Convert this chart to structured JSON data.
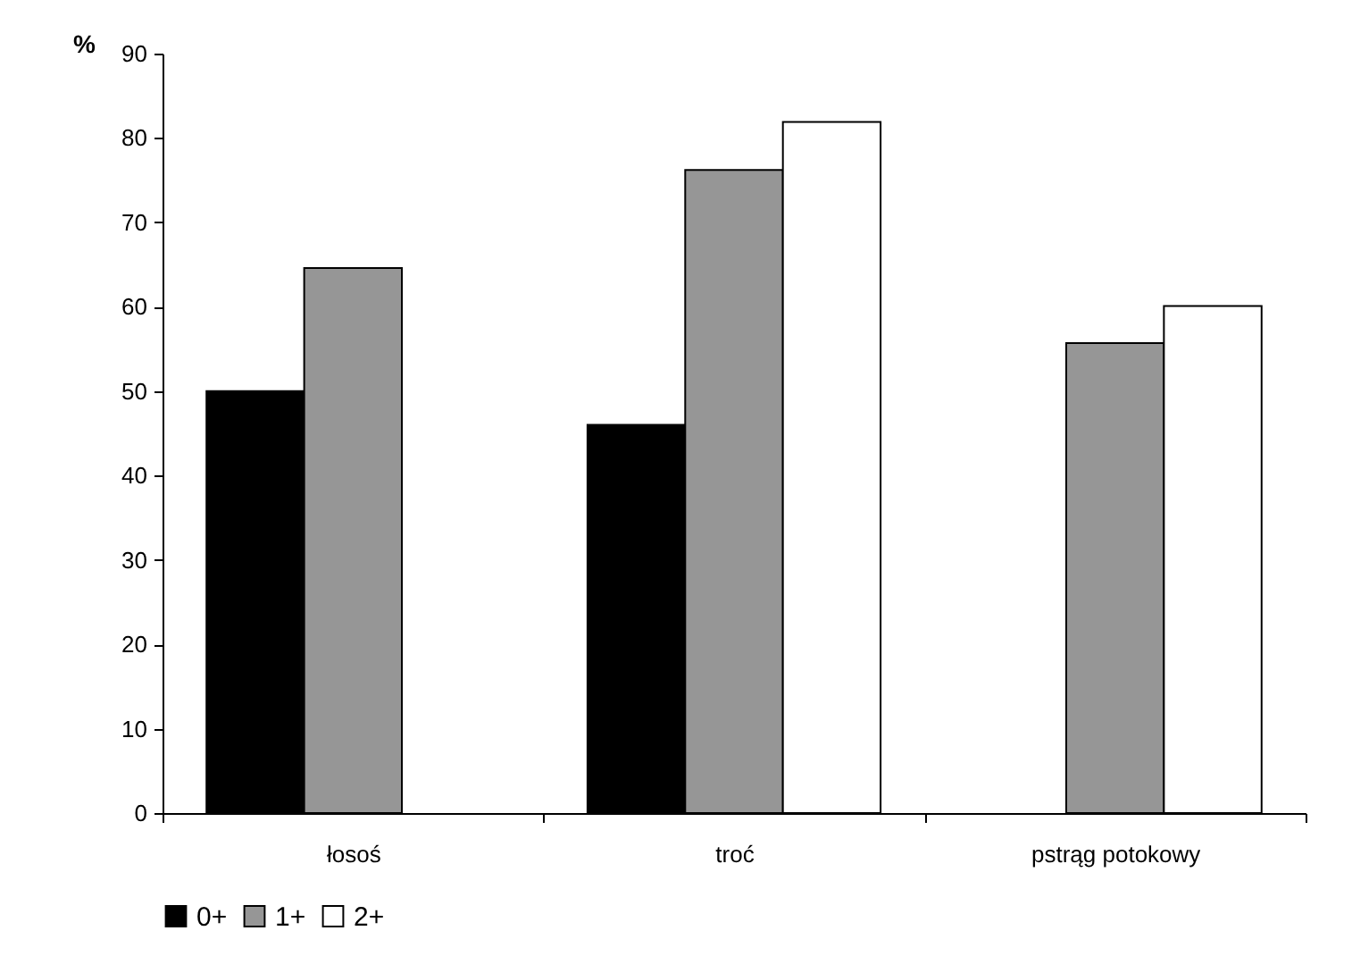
{
  "chart_data": {
    "type": "bar",
    "ylabel": "%",
    "categories": [
      "łosoś",
      "troć",
      "pstrąg potokowy"
    ],
    "series": [
      {
        "name": "0+",
        "color": "#000000",
        "values": [
          50.0,
          46.0,
          null
        ]
      },
      {
        "name": "1+",
        "color": "#969696",
        "values": [
          64.6,
          76.2,
          55.7
        ]
      },
      {
        "name": "2+",
        "color": "#ffffff",
        "values": [
          null,
          81.9,
          60.1
        ]
      }
    ],
    "ylim": [
      0,
      90
    ],
    "yticks": [
      0,
      10,
      20,
      30,
      40,
      50,
      60,
      70,
      80,
      90
    ],
    "grid": false,
    "legend": "bottom"
  }
}
